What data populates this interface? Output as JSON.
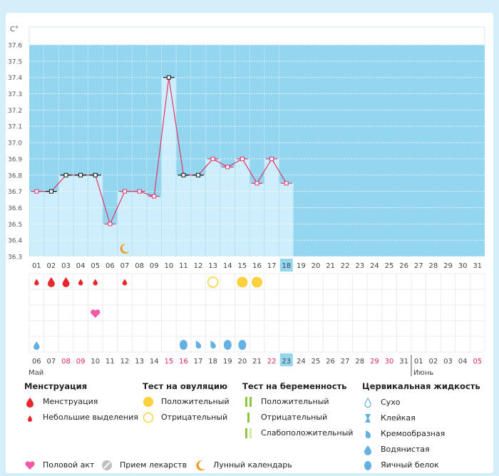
{
  "chart_data": {
    "type": "bar",
    "unit_label": "C°",
    "y_ticks": [
      37.6,
      37.5,
      37.4,
      37.3,
      37.2,
      37.1,
      37.0,
      36.9,
      36.8,
      36.7,
      36.6,
      36.5,
      36.4,
      36.3
    ],
    "ylim": [
      36.3,
      37.6
    ],
    "x_ticks": [
      "01",
      "02",
      "03",
      "04",
      "05",
      "06",
      "07",
      "08",
      "09",
      "10",
      "11",
      "12",
      "13",
      "14",
      "15",
      "16",
      "17",
      "18",
      "19",
      "20",
      "21",
      "22",
      "23",
      "24",
      "25",
      "26",
      "27",
      "28",
      "29",
      "30",
      "31"
    ],
    "temperatures": [
      36.7,
      36.7,
      36.8,
      36.8,
      36.8,
      36.5,
      36.7,
      36.7,
      36.67,
      37.4,
      36.8,
      36.8,
      36.9,
      36.85,
      36.9,
      36.75,
      36.9,
      36.75
    ],
    "marker_styles": [
      "pink",
      "black",
      "black",
      "black",
      "black",
      "pink",
      "pink",
      "pink",
      "pink",
      "black",
      "black",
      "black",
      "pink",
      "pink",
      "pink",
      "pink",
      "pink",
      "pink"
    ],
    "highlight_day": "18",
    "cal_days": [
      "06",
      "07",
      "08",
      "09",
      "10",
      "11",
      "12",
      "13",
      "14",
      "15",
      "16",
      "17",
      "18",
      "19",
      "20",
      "21",
      "22",
      "23",
      "24",
      "25",
      "26",
      "27",
      "28",
      "29",
      "30",
      "31",
      "01",
      "02",
      "03",
      "04",
      "05"
    ],
    "red_days": [
      "08",
      "09",
      "15",
      "16",
      "22",
      "29",
      "30",
      "05"
    ],
    "highlight_cal_day": "23",
    "month_may": "Май",
    "month_june": "Июнь",
    "events": {
      "menstruation": [
        1,
        2,
        3,
        4,
        5,
        7
      ],
      "menstruation_big": [
        2,
        3
      ],
      "ovulation_negative": [
        13
      ],
      "ovulation_positive": [
        15,
        16
      ],
      "intercourse": [
        5
      ],
      "lunar": [
        7
      ],
      "fluid_watery": [
        1
      ],
      "fluid_mixed": [
        11,
        12,
        13,
        14,
        15
      ]
    }
  },
  "legend": {
    "menstruation_title": "Менструация",
    "menstruation": "Менструация",
    "spotting": "Небольшие выделения",
    "ovulation_title": "Тест на овуляцию",
    "ovulation_positive": "Положительный",
    "ovulation_negative": "Отрицательный",
    "pregnancy_title": "Тест на беременность",
    "pregnancy_positive": "Положительный",
    "pregnancy_negative": "Отрицательный",
    "pregnancy_weak": "Слабоположительный",
    "fluid_title": "Цервикальная жидкость",
    "fluid_dry": "Сухо",
    "fluid_sticky": "Клейкая",
    "fluid_creamy": "Кремообразная",
    "fluid_watery": "Водянистая",
    "fluid_egg_white": "Яичный белок",
    "intercourse": "Половой акт",
    "medication": "Прием лекарств",
    "lunar": "Лунный календарь"
  },
  "colors": {
    "background": "#d4eff9",
    "sky": "#94d5ef",
    "bar": "#cfeefb",
    "line": "#e0366a",
    "red_drop": "#e8262e",
    "yellow": "#fbd23b",
    "green": "#8cc63f",
    "blue": "#62b1e2",
    "pink": "#f05aa8",
    "orange": "#f29a1f",
    "red_text": "#e0245e"
  }
}
